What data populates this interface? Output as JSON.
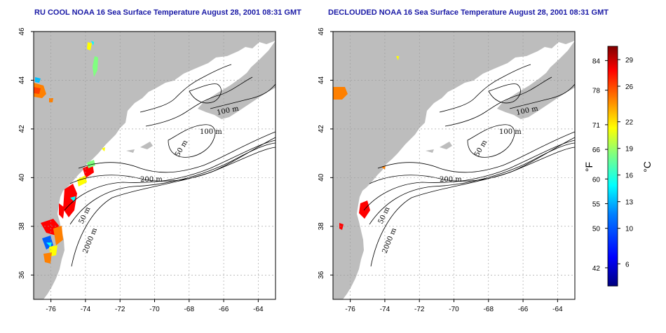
{
  "panels": [
    {
      "id": "left",
      "title": "RU COOL NOAA 16 Sea Surface Temperature August 28, 2001 08:31 GMT"
    },
    {
      "id": "right",
      "title": "DECLOUDED NOAA 16 Sea Surface Temperature August 28, 2001 08:31 GMT"
    }
  ],
  "map": {
    "lon_range": [
      -77,
      -63
    ],
    "lat_range": [
      35,
      46
    ],
    "lon_ticks": [
      "-76",
      "-74",
      "-72",
      "-70",
      "-68",
      "-66",
      "-64"
    ],
    "lat_ticks": [
      "36",
      "38",
      "40",
      "42",
      "44",
      "46"
    ],
    "contour_labels": [
      "100 m",
      "100 m",
      "50 m",
      "200 m",
      "50 m",
      "2000 m"
    ]
  },
  "colorbar": {
    "fahrenheit_label": "°F",
    "celsius_label": "°C",
    "fahrenheit_ticks": [
      "84",
      "78",
      "71",
      "66",
      "60",
      "55",
      "50",
      "42"
    ],
    "celsius_ticks": [
      "29",
      "26",
      "22",
      "19",
      "16",
      "13",
      "10",
      "6"
    ],
    "colors": [
      "#00007f",
      "#0000ff",
      "#0080ff",
      "#00ffff",
      "#80ff80",
      "#ffff00",
      "#ff8000",
      "#ff0000",
      "#7f0000"
    ]
  }
}
